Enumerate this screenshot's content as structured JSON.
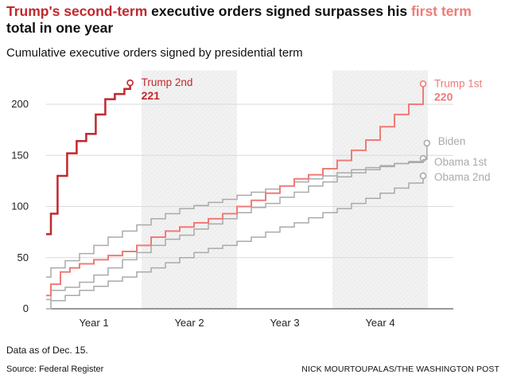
{
  "headline": {
    "part1": "Trump's second-term",
    "part2": " executive orders signed surpasses his ",
    "part3": "first term",
    "part4": " total in one year"
  },
  "subtitle": "Cumulative executive orders signed by presidential term",
  "note": "Data as of Dec. 15.",
  "source": "Source: Federal Register",
  "credit": "NICK MOURTOUPALAS/THE WASHINGTON POST",
  "colors": {
    "trump2": "#c0282d",
    "trump1": "#ef7b78",
    "obama": "#aaaaaa",
    "grid": "#d9d9d9",
    "axis": "#333333",
    "band": "#f2f2f2"
  },
  "chart_data": {
    "type": "line",
    "title": "Cumulative executive orders signed by presidential term",
    "xlabel": "",
    "ylabel": "",
    "xlim": [
      0,
      4
    ],
    "ylim": [
      0,
      230
    ],
    "yticks": [
      0,
      50,
      100,
      150,
      200
    ],
    "categories": [
      "Year 1",
      "Year 2",
      "Year 3",
      "Year 4"
    ],
    "grid": true,
    "series": [
      {
        "name": "Obama 1st",
        "value_label": "",
        "color": "#aaaaaa",
        "x": [
          0,
          0.05,
          0.2,
          0.35,
          0.5,
          0.65,
          0.8,
          0.95,
          1.1,
          1.25,
          1.4,
          1.55,
          1.7,
          1.85,
          2.0,
          2.15,
          2.3,
          2.45,
          2.6,
          2.75,
          2.9,
          3.05,
          3.2,
          3.35,
          3.5,
          3.65,
          3.8,
          3.95
        ],
        "y": [
          31,
          40,
          47,
          54,
          62,
          70,
          76,
          82,
          88,
          93,
          98,
          101,
          104,
          107,
          111,
          114,
          117,
          120,
          124,
          127,
          130,
          133,
          136,
          138,
          140,
          142,
          144,
          147
        ]
      },
      {
        "name": "Biden",
        "value_label": "",
        "color": "#aaaaaa",
        "x": [
          0,
          0.05,
          0.2,
          0.35,
          0.5,
          0.65,
          0.8,
          0.95,
          1.1,
          1.25,
          1.4,
          1.55,
          1.7,
          1.85,
          2.0,
          2.15,
          2.3,
          2.45,
          2.6,
          2.75,
          2.9,
          3.05,
          3.2,
          3.35,
          3.5,
          3.65,
          3.8,
          3.95,
          3.99
        ],
        "y": [
          9,
          18,
          21,
          26,
          33,
          40,
          48,
          55,
          62,
          68,
          72,
          78,
          83,
          88,
          94,
          99,
          103,
          109,
          114,
          120,
          124,
          129,
          133,
          136,
          139,
          142,
          143,
          146,
          162
        ]
      },
      {
        "name": "Obama 2nd",
        "value_label": "",
        "color": "#aaaaaa",
        "x": [
          0,
          0.05,
          0.2,
          0.35,
          0.5,
          0.65,
          0.8,
          0.95,
          1.1,
          1.25,
          1.4,
          1.55,
          1.7,
          1.85,
          2.0,
          2.15,
          2.3,
          2.45,
          2.6,
          2.75,
          2.9,
          3.05,
          3.2,
          3.35,
          3.5,
          3.65,
          3.8,
          3.95
        ],
        "y": [
          0,
          8,
          13,
          18,
          22,
          27,
          31,
          36,
          40,
          45,
          50,
          55,
          59,
          62,
          66,
          70,
          75,
          80,
          84,
          89,
          94,
          98,
          103,
          108,
          113,
          118,
          123,
          130
        ]
      },
      {
        "name": "Trump 1st",
        "value_label": "220",
        "color": "#ef7b78",
        "x": [
          0,
          0.05,
          0.15,
          0.25,
          0.35,
          0.5,
          0.65,
          0.8,
          0.95,
          1.1,
          1.25,
          1.4,
          1.55,
          1.7,
          1.85,
          2.0,
          2.15,
          2.3,
          2.45,
          2.6,
          2.75,
          2.9,
          3.05,
          3.2,
          3.35,
          3.5,
          3.65,
          3.8,
          3.95
        ],
        "y": [
          13,
          24,
          36,
          40,
          44,
          48,
          52,
          56,
          62,
          70,
          76,
          80,
          84,
          88,
          93,
          100,
          106,
          113,
          120,
          127,
          131,
          137,
          145,
          155,
          165,
          178,
          190,
          200,
          220
        ]
      },
      {
        "name": "Trump 2nd",
        "value_label": "221",
        "color": "#c0282d",
        "x": [
          0,
          0.05,
          0.12,
          0.22,
          0.32,
          0.42,
          0.52,
          0.62,
          0.72,
          0.82,
          0.88
        ],
        "y": [
          73,
          93,
          130,
          152,
          164,
          171,
          190,
          205,
          210,
          215,
          221
        ]
      }
    ]
  }
}
